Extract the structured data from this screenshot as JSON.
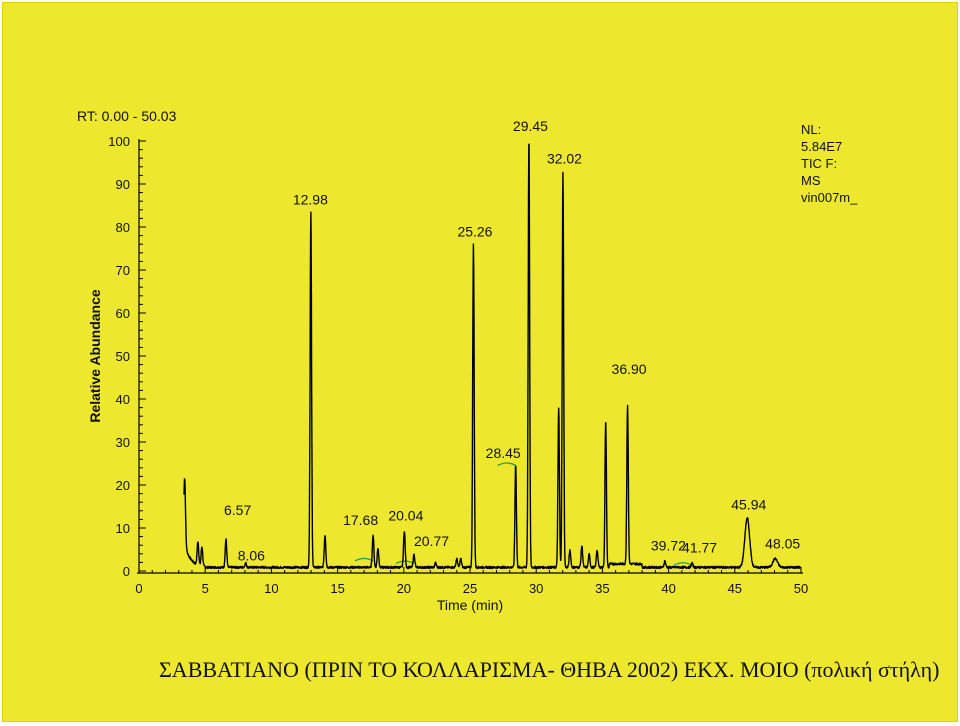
{
  "range_label": "RT: 0.00 - 50.03",
  "info_lines": [
    "NL:",
    "5.84E7",
    "TIC F:",
    "MS",
    "vin007m_"
  ],
  "caption": "ΣΑΒΒΑΤΙΑΝΟ (ΠΡΙΝ ΤΟ ΚΟΛΛΑΡΙΣΜΑ- ΘΗΒΑ 2002) ΕΚΧ. ΜΟΙΟ (πολική στήλη)",
  "colors": {
    "background": "#ede82d",
    "trace": "#000000",
    "integration_marks": "#2e9e4a"
  },
  "chart_data": {
    "type": "line",
    "xlabel": "Time (min)",
    "ylabel": "Relative Abundance",
    "xlim": [
      0,
      50
    ],
    "ylim": [
      0,
      100
    ],
    "x_ticks": [
      "0",
      "5",
      "10",
      "15",
      "20",
      "25",
      "30",
      "35",
      "40",
      "45",
      "50"
    ],
    "y_ticks": [
      "0",
      "10",
      "20",
      "30",
      "40",
      "50",
      "60",
      "70",
      "80",
      "90",
      "100"
    ],
    "peaks": [
      {
        "x": 3.45,
        "y": 15.5
      },
      {
        "x": 4.45,
        "y": 5.5
      },
      {
        "x": 4.75,
        "y": 4.5
      },
      {
        "x": 6.57,
        "y": 6.5,
        "label": "6.57"
      },
      {
        "x": 8.06,
        "y": 1.0,
        "label": "8.06"
      },
      {
        "x": 12.98,
        "y": 82.5,
        "label": "12.98"
      },
      {
        "x": 14.05,
        "y": 7.5
      },
      {
        "x": 17.68,
        "y": 7.5,
        "label": "17.68"
      },
      {
        "x": 18.05,
        "y": 4.5
      },
      {
        "x": 20.04,
        "y": 8.5,
        "label": "20.04"
      },
      {
        "x": 20.77,
        "y": 3.0,
        "label": "20.77"
      },
      {
        "x": 22.4,
        "y": 1.0
      },
      {
        "x": 24.0,
        "y": 2.0
      },
      {
        "x": 24.3,
        "y": 2.0
      },
      {
        "x": 25.26,
        "y": 75.0,
        "label": "25.26"
      },
      {
        "x": 28.45,
        "y": 24.0,
        "label": "28.45"
      },
      {
        "x": 29.45,
        "y": 100.0,
        "label": "29.45"
      },
      {
        "x": 31.7,
        "y": 37.0
      },
      {
        "x": 32.02,
        "y": 92.0,
        "label": "32.02"
      },
      {
        "x": 32.55,
        "y": 4.0
      },
      {
        "x": 33.45,
        "y": 5.0
      },
      {
        "x": 34.0,
        "y": 3.0
      },
      {
        "x": 34.6,
        "y": 4.0
      },
      {
        "x": 35.25,
        "y": 34.0
      },
      {
        "x": 36.9,
        "y": 37.0,
        "label": "36.90"
      },
      {
        "x": 39.72,
        "y": 1.5,
        "label": "39.72"
      },
      {
        "x": 41.77,
        "y": 1.0,
        "label": "41.77"
      },
      {
        "x": 45.94,
        "y": 11.5,
        "label": "45.94"
      },
      {
        "x": 48.05,
        "y": 2.0,
        "label": "48.05"
      }
    ]
  }
}
